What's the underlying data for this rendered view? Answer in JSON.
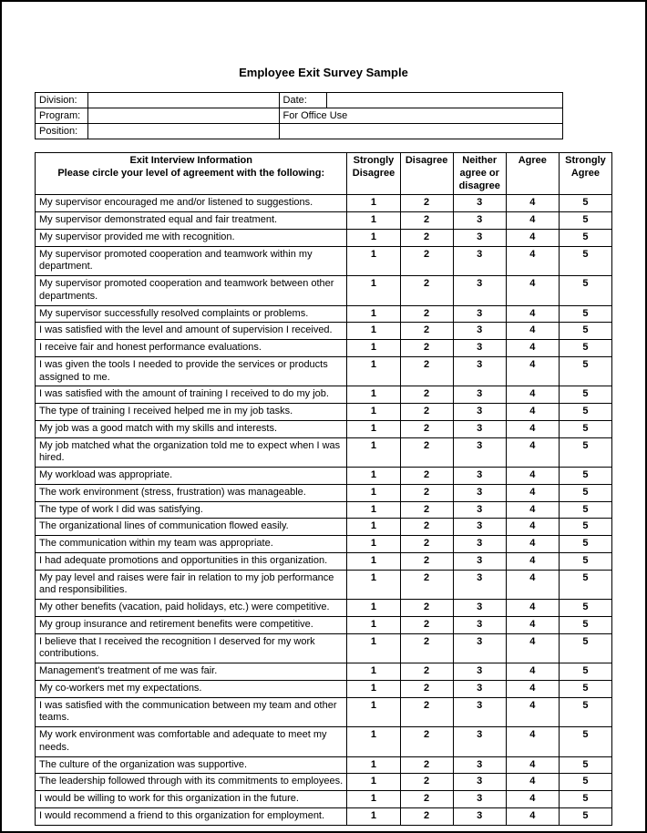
{
  "title": "Employee Exit Survey Sample",
  "header": {
    "division_label": "Division:",
    "division_value": "",
    "date_label": "Date:",
    "date_value": "",
    "program_label": "Program:",
    "program_value": "",
    "office_use_label": "For Office Use",
    "position_label": "Position:",
    "position_value": ""
  },
  "table_header": {
    "prompt_line1": "Exit Interview Information",
    "prompt_line2": "Please circle your level of agreement with the following:",
    "col1": "Strongly Disagree",
    "col2": "Disagree",
    "col3": "Neither agree or disagree",
    "col4": "Agree",
    "col5": "Strongly Agree"
  },
  "scale": [
    "1",
    "2",
    "3",
    "4",
    "5"
  ],
  "questions": [
    "My supervisor encouraged me and/or listened to suggestions.",
    "My supervisor demonstrated equal and fair treatment.",
    "My supervisor provided me with recognition.",
    "My supervisor promoted cooperation and teamwork within my department.",
    "My supervisor promoted cooperation and teamwork between other departments.",
    "My supervisor successfully resolved complaints or problems.",
    "I was satisfied with the level and amount of supervision I received.",
    "I receive fair and honest performance evaluations.",
    "I was given the tools I needed to provide the services or products assigned to me.",
    "I was satisfied with the amount of training I received to do my job.",
    "The type of training I received helped me in my job tasks.",
    "My job was a good match with my skills and interests.",
    "My job matched what the organization told me to expect when I was hired.",
    "My workload was appropriate.",
    "The work environment (stress, frustration) was manageable.",
    "The type of work I did was satisfying.",
    "The organizational lines of communication flowed easily.",
    "The communication within my team was appropriate.",
    "I had adequate promotions and opportunities in this organization.",
    "My pay level and raises were fair in relation to my job performance and responsibilities.",
    "My other benefits (vacation, paid holidays, etc.) were competitive.",
    "My group insurance and retirement benefits were competitive.",
    "I believe that I received the recognition I deserved for my work contributions.",
    "Management's treatment of me was fair.",
    "My co-workers met my expectations.",
    "I was satisfied with the communication between my team and other teams.",
    "My work environment was comfortable and adequate to meet my needs.",
    "The culture of the organization was supportive.",
    "The leadership followed through with its commitments to employees.",
    "I would be willing to work for this organization in the future.",
    "I would recommend a friend to this organization for employment."
  ],
  "colors": {
    "border": "#000000",
    "background": "#ffffff",
    "text": "#000000"
  }
}
